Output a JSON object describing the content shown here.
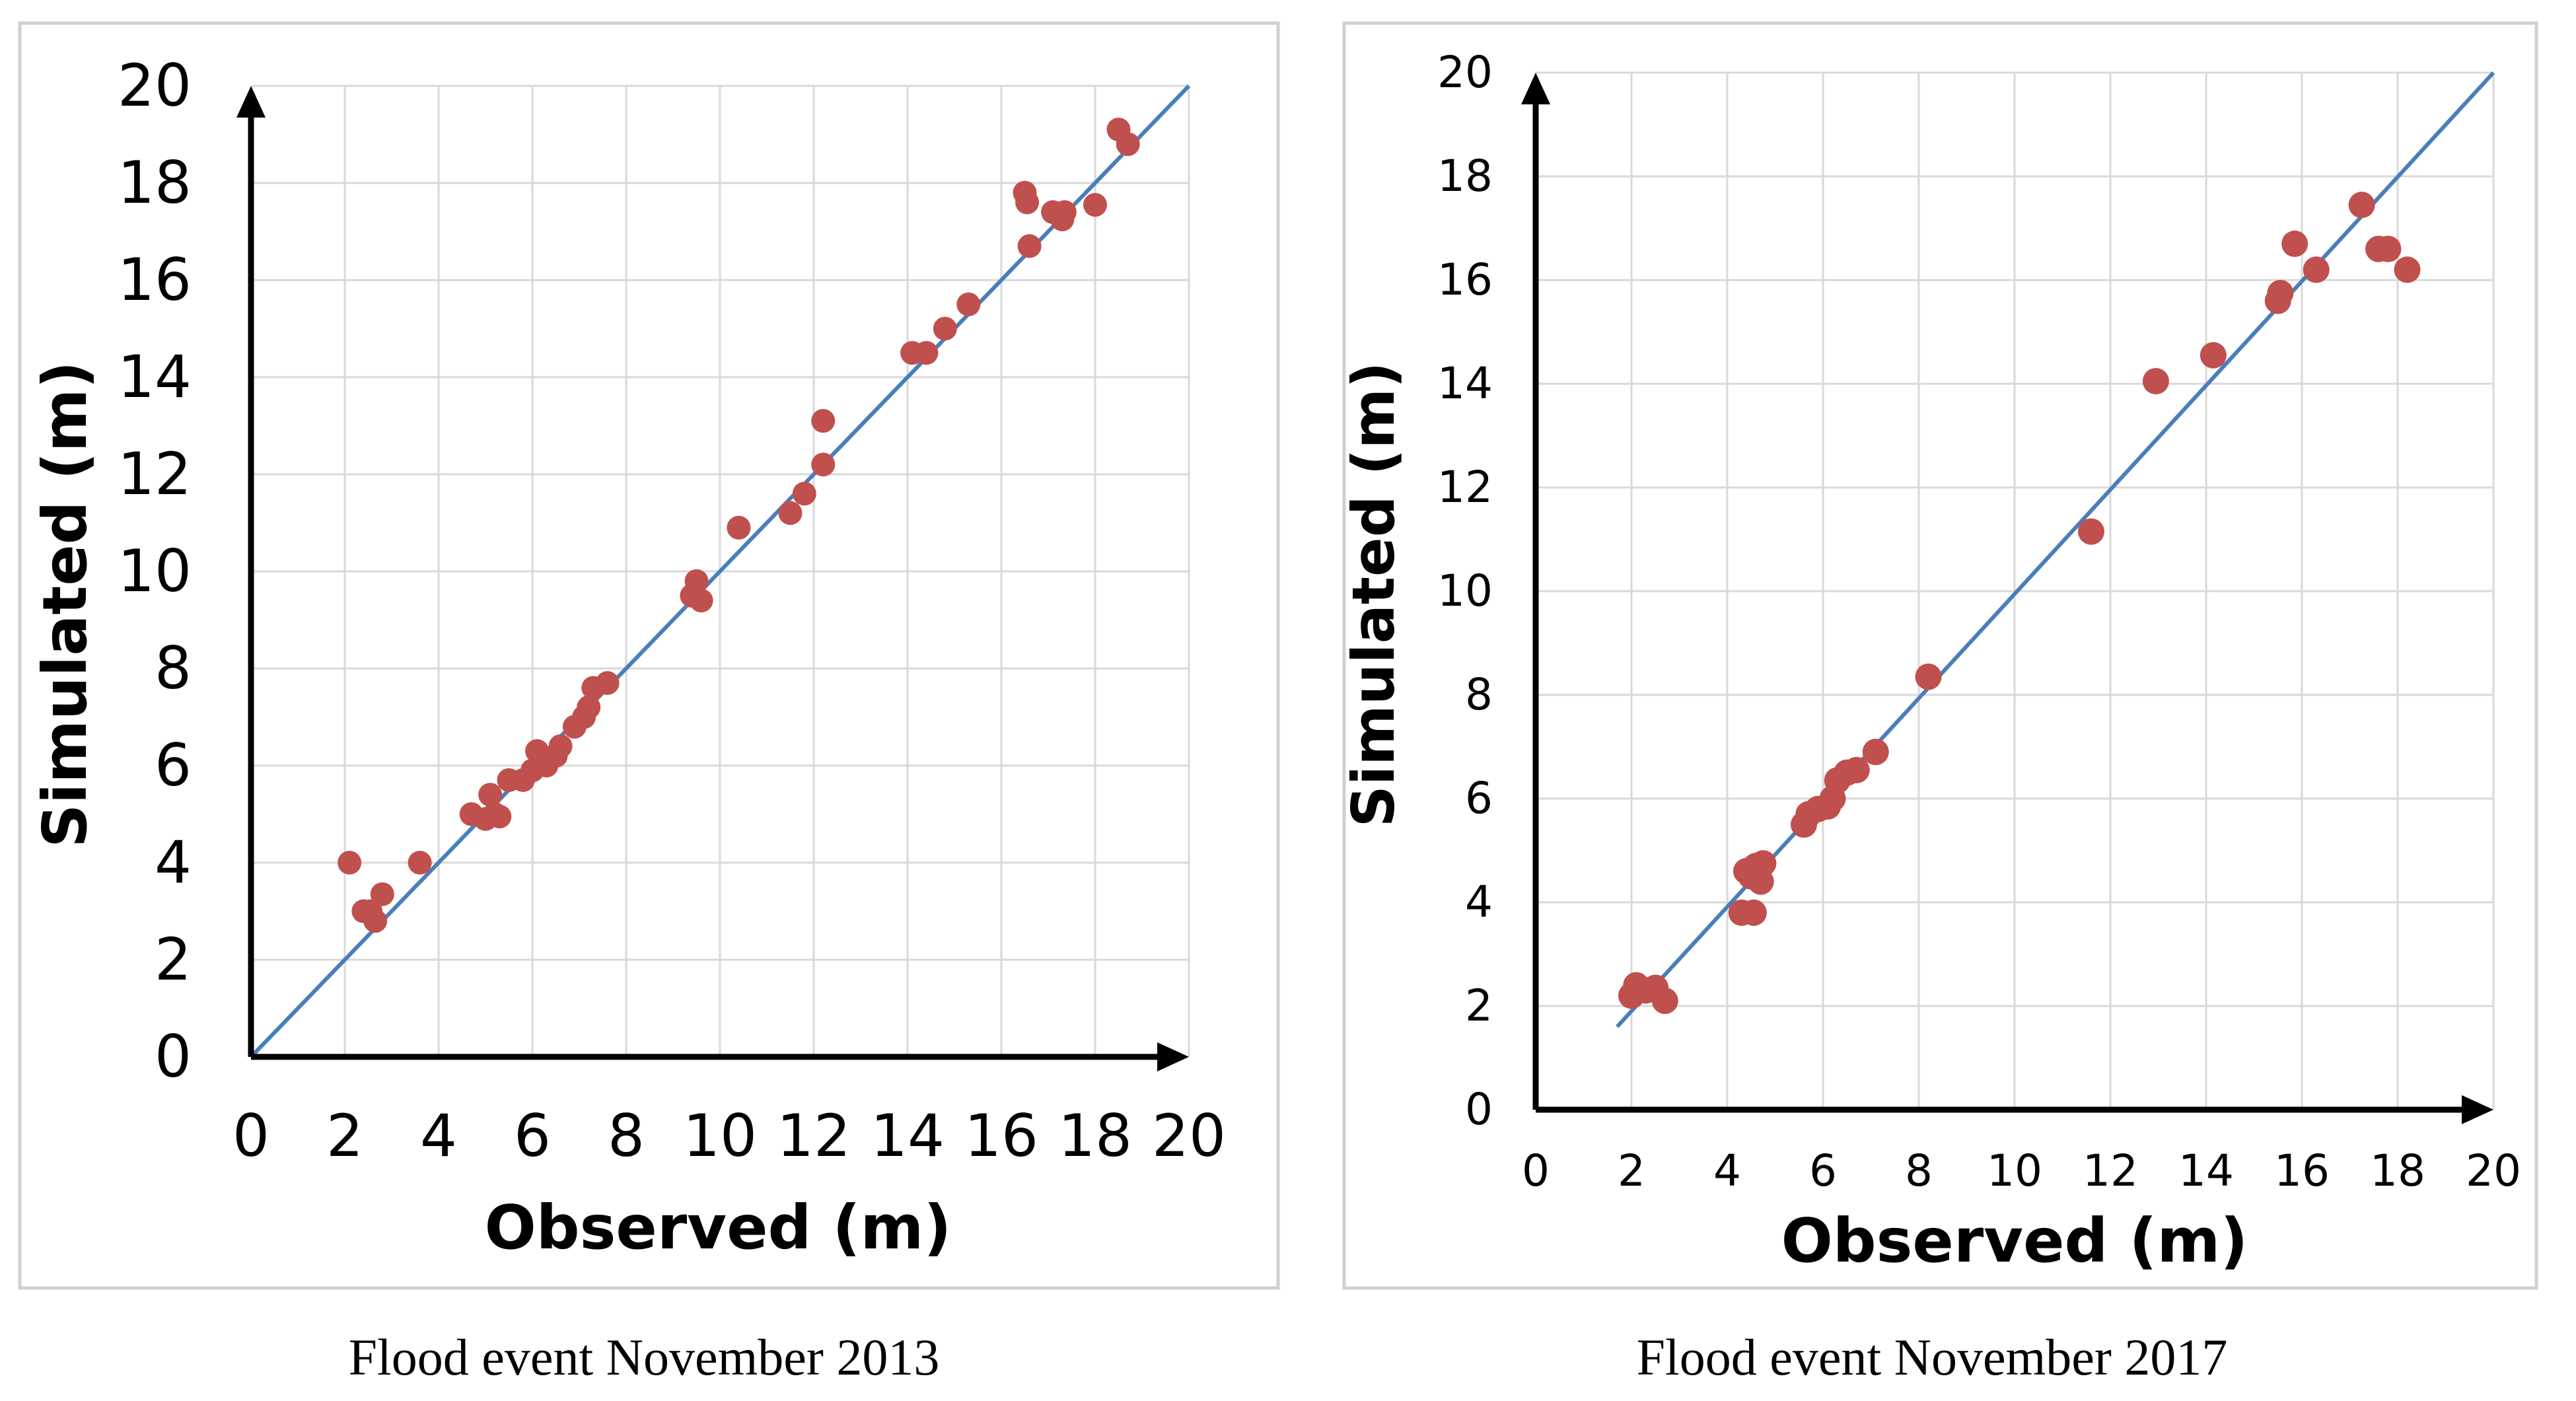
{
  "colors": {
    "marker": "#c0504d",
    "fit_line": "#4a7ebb",
    "grid": "#d9d9d9",
    "frame": "#d0d0d0"
  },
  "chart_data": [
    {
      "type": "scatter",
      "caption": "Flood event November 2013",
      "xlabel": "Observed (m)",
      "ylabel": "Simulated (m)",
      "xlim": [
        0,
        20
      ],
      "ylim": [
        0,
        20
      ],
      "xticks": [
        "0",
        "2",
        "4",
        "6",
        "8",
        "10",
        "12",
        "14",
        "16",
        "18",
        "20"
      ],
      "yticks": [
        "0",
        "2",
        "4",
        "6",
        "8",
        "10",
        "12",
        "14",
        "16",
        "18",
        "20"
      ],
      "grid": true,
      "fit_line": {
        "x": [
          0,
          20
        ],
        "y": [
          0,
          20
        ]
      },
      "series": [
        {
          "name": "points",
          "points": [
            [
              2.1,
              4.0
            ],
            [
              2.4,
              3.0
            ],
            [
              2.55,
              3.0
            ],
            [
              2.65,
              2.8
            ],
            [
              2.8,
              3.35
            ],
            [
              3.6,
              4.0
            ],
            [
              4.7,
              5.0
            ],
            [
              5.0,
              4.9
            ],
            [
              5.1,
              5.4
            ],
            [
              5.2,
              5.0
            ],
            [
              5.3,
              4.95
            ],
            [
              5.5,
              5.7
            ],
            [
              5.8,
              5.7
            ],
            [
              6.0,
              5.9
            ],
            [
              6.1,
              6.3
            ],
            [
              6.3,
              6.0
            ],
            [
              6.5,
              6.2
            ],
            [
              6.6,
              6.4
            ],
            [
              6.9,
              6.8
            ],
            [
              7.1,
              7.0
            ],
            [
              7.2,
              7.2
            ],
            [
              7.3,
              7.6
            ],
            [
              7.6,
              7.7
            ],
            [
              9.4,
              9.5
            ],
            [
              9.5,
              9.8
            ],
            [
              9.6,
              9.4
            ],
            [
              10.4,
              10.9
            ],
            [
              11.5,
              11.2
            ],
            [
              11.8,
              11.6
            ],
            [
              12.2,
              12.2
            ],
            [
              12.2,
              13.1
            ],
            [
              14.1,
              14.5
            ],
            [
              14.4,
              14.5
            ],
            [
              14.8,
              15.0
            ],
            [
              15.3,
              15.5
            ],
            [
              16.5,
              17.8
            ],
            [
              16.55,
              17.6
            ],
            [
              16.6,
              16.7
            ],
            [
              17.1,
              17.4
            ],
            [
              17.3,
              17.25
            ],
            [
              17.35,
              17.4
            ],
            [
              18.0,
              17.55
            ],
            [
              18.5,
              19.1
            ],
            [
              18.7,
              18.8
            ]
          ]
        }
      ]
    },
    {
      "type": "scatter",
      "caption": "Flood event November 2017",
      "xlabel": "Observed (m)",
      "ylabel": "Simulated (m)",
      "xlim": [
        0,
        20
      ],
      "ylim": [
        0,
        20
      ],
      "xticks": [
        "0",
        "2",
        "4",
        "6",
        "8",
        "10",
        "12",
        "14",
        "16",
        "18",
        "20"
      ],
      "yticks": [
        "0",
        "2",
        "4",
        "6",
        "8",
        "10",
        "12",
        "14",
        "16",
        "18",
        "20"
      ],
      "grid": true,
      "fit_line": {
        "x": [
          1.7,
          20
        ],
        "y": [
          1.6,
          20
        ]
      },
      "series": [
        {
          "name": "points",
          "points": [
            [
              2.0,
              2.2
            ],
            [
              2.1,
              2.4
            ],
            [
              2.3,
              2.3
            ],
            [
              2.5,
              2.35
            ],
            [
              2.7,
              2.1
            ],
            [
              4.3,
              3.8
            ],
            [
              4.4,
              4.6
            ],
            [
              4.5,
              4.5
            ],
            [
              4.55,
              3.8
            ],
            [
              4.6,
              4.7
            ],
            [
              4.7,
              4.4
            ],
            [
              4.75,
              4.75
            ],
            [
              5.6,
              5.5
            ],
            [
              5.7,
              5.7
            ],
            [
              5.9,
              5.8
            ],
            [
              6.1,
              5.85
            ],
            [
              6.2,
              6.0
            ],
            [
              6.3,
              6.35
            ],
            [
              6.5,
              6.5
            ],
            [
              6.7,
              6.55
            ],
            [
              7.1,
              6.9
            ],
            [
              8.2,
              8.35
            ],
            [
              11.6,
              11.15
            ],
            [
              12.95,
              14.05
            ],
            [
              14.15,
              14.55
            ],
            [
              15.5,
              15.6
            ],
            [
              15.55,
              15.75
            ],
            [
              15.85,
              16.7
            ],
            [
              16.3,
              16.2
            ],
            [
              17.25,
              17.45
            ],
            [
              17.6,
              16.6
            ],
            [
              17.8,
              16.6
            ],
            [
              18.2,
              16.2
            ]
          ]
        }
      ]
    }
  ]
}
